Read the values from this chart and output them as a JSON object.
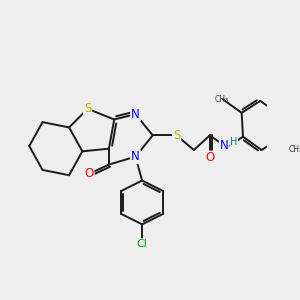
{
  "bg_color": "#eeeeee",
  "atom_colors": {
    "S": "#b8b800",
    "N": "#0000ff",
    "O": "#ff0000",
    "C": "#000000",
    "Cl": "#00aa00",
    "H": "#008080"
  },
  "bond_color": "#1a1a1a",
  "bond_width": 1.4,
  "figsize": [
    3.0,
    3.0
  ],
  "dpi": 100
}
